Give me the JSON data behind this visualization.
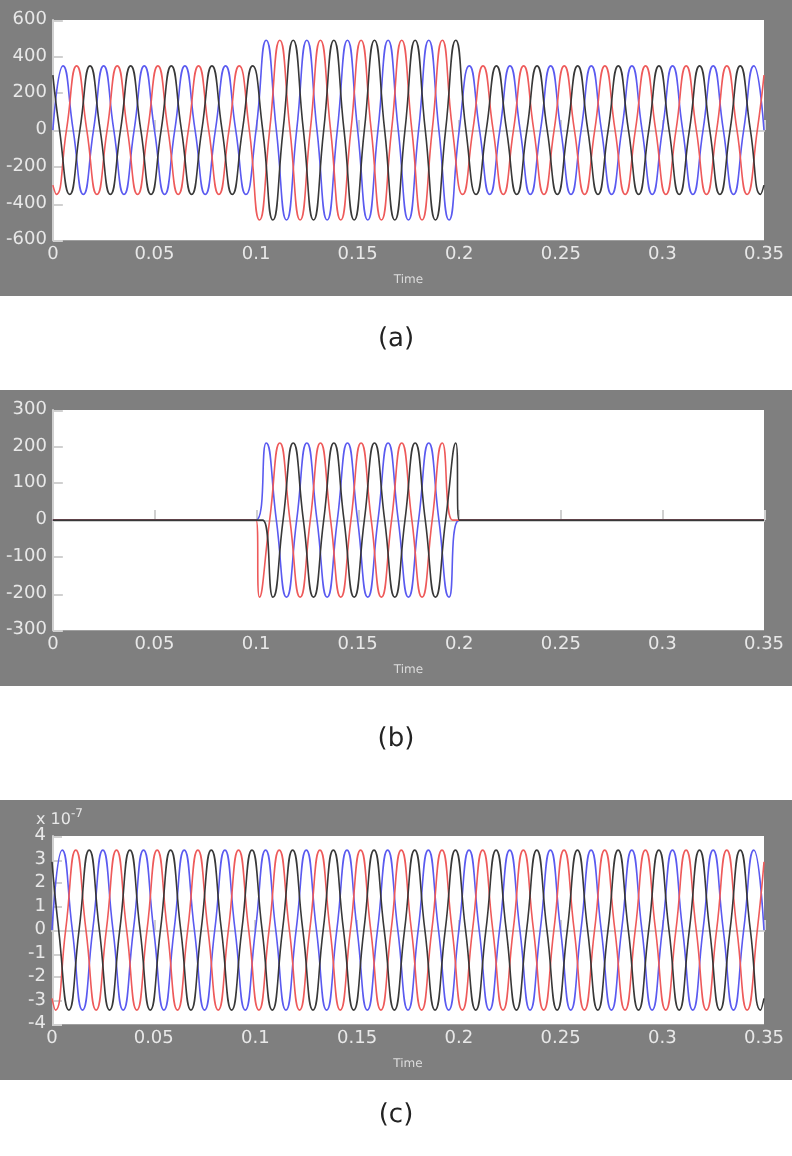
{
  "chart_data": [
    {
      "type": "line",
      "title": "(a)",
      "xlabel": "Time",
      "xlim": [
        0,
        0.35
      ],
      "xticks": [
        0,
        0.05,
        0.1,
        0.15,
        0.2,
        0.25,
        0.3,
        0.35
      ],
      "ylim": [
        -600,
        600
      ],
      "yticks": [
        -600,
        -400,
        -200,
        0,
        200,
        400,
        600
      ],
      "series": [
        {
          "color": "#5a5af0",
          "x": [
            0,
            0.005,
            0.01,
            0.015,
            0.02,
            0.025,
            0.03,
            0.035,
            0.04,
            0.045,
            0.05,
            0.055,
            0.06,
            0.065,
            0.07,
            0.075,
            0.08,
            0.085,
            0.09,
            0.095,
            0.1,
            0.105,
            0.11,
            0.115,
            0.12,
            0.125,
            0.13,
            0.135,
            0.14,
            0.145,
            0.15,
            0.155,
            0.16,
            0.165,
            0.17,
            0.175,
            0.18,
            0.185,
            0.19,
            0.195,
            0.2,
            0.205,
            0.21,
            0.215,
            0.22,
            0.225,
            0.23,
            0.235,
            0.24,
            0.245,
            0.25,
            0.255,
            0.26,
            0.265,
            0.27,
            0.275,
            0.28,
            0.285,
            0.29,
            0.295,
            0.3,
            0.305,
            0.31,
            0.315,
            0.32,
            0.325,
            0.33,
            0.335,
            0.34,
            0.345,
            0.35
          ],
          "values": [
            0,
            350,
            0,
            -350,
            0,
            350,
            0,
            -350,
            0,
            350,
            0,
            -350,
            0,
            350,
            0,
            -350,
            0,
            350,
            0,
            -350,
            0,
            490,
            0,
            -490,
            0,
            490,
            0,
            -490,
            0,
            490,
            0,
            -490,
            0,
            490,
            0,
            -490,
            0,
            490,
            0,
            -490,
            0,
            350,
            0,
            -350,
            0,
            350,
            0,
            -350,
            0,
            350,
            0,
            -350,
            0,
            350,
            0,
            -350,
            0,
            350,
            0,
            -350,
            0,
            350,
            0,
            -350,
            0,
            350,
            0,
            -350,
            0,
            350,
            0
          ]
        },
        {
          "color": "#ee5a5a",
          "x": [
            0,
            0.0017,
            0.0067,
            0.0117,
            0.0167,
            0.0217,
            0.0267,
            0.0317,
            0.0367,
            0.0417,
            0.0467,
            0.0517,
            0.0567,
            0.0617,
            0.0667,
            0.0717,
            0.0767,
            0.0817,
            0.0867,
            0.0917,
            0.0967,
            0.1017,
            0.1067,
            0.1117,
            0.1167,
            0.1217,
            0.1267,
            0.1317,
            0.1367,
            0.1417,
            0.1467,
            0.1517,
            0.1567,
            0.1617,
            0.1667,
            0.1717,
            0.1767,
            0.1817,
            0.1867,
            0.1917,
            0.1967,
            0.2017,
            0.2067,
            0.2117,
            0.2167,
            0.2217,
            0.2267,
            0.2317,
            0.2367,
            0.2417,
            0.2467,
            0.2517,
            0.2567,
            0.2617,
            0.2667,
            0.2717,
            0.2767,
            0.2817,
            0.2867,
            0.2917,
            0.2967,
            0.3017,
            0.3067,
            0.3117,
            0.3167,
            0.3217,
            0.3267,
            0.3317,
            0.3367,
            0.3417,
            0.3467,
            0.35
          ],
          "values": [
            -300,
            -350,
            0,
            350,
            0,
            -350,
            0,
            350,
            0,
            -350,
            0,
            350,
            0,
            -350,
            0,
            350,
            0,
            -350,
            0,
            350,
            0,
            -490,
            0,
            490,
            0,
            -490,
            0,
            490,
            0,
            -490,
            0,
            490,
            0,
            -490,
            0,
            490,
            0,
            -490,
            0,
            490,
            0,
            -350,
            0,
            350,
            0,
            -350,
            0,
            350,
            0,
            -350,
            0,
            350,
            0,
            -350,
            0,
            350,
            0,
            -350,
            0,
            350,
            0,
            -350,
            0,
            350,
            0,
            -350,
            0,
            350,
            0,
            -350,
            0,
            300
          ]
        },
        {
          "color": "#383838",
          "x": [
            0,
            0.0033,
            0.0083,
            0.0133,
            0.0183,
            0.0233,
            0.0283,
            0.0333,
            0.0383,
            0.0433,
            0.0483,
            0.0533,
            0.0583,
            0.0633,
            0.0683,
            0.0733,
            0.0783,
            0.0833,
            0.0883,
            0.0933,
            0.0983,
            0.1033,
            0.1083,
            0.1133,
            0.1183,
            0.1233,
            0.1283,
            0.1333,
            0.1383,
            0.1433,
            0.1483,
            0.1533,
            0.1583,
            0.1633,
            0.1683,
            0.1733,
            0.1783,
            0.1833,
            0.1883,
            0.1933,
            0.1983,
            0.2033,
            0.2083,
            0.2133,
            0.2183,
            0.2233,
            0.2283,
            0.2333,
            0.2383,
            0.2433,
            0.2483,
            0.2533,
            0.2583,
            0.2633,
            0.2683,
            0.2733,
            0.2783,
            0.2833,
            0.2883,
            0.2933,
            0.2983,
            0.3033,
            0.3083,
            0.3133,
            0.3183,
            0.3233,
            0.3283,
            0.3333,
            0.3383,
            0.3433,
            0.3483,
            0.35
          ],
          "values": [
            300,
            0,
            -350,
            0,
            350,
            0,
            -350,
            0,
            350,
            0,
            -350,
            0,
            350,
            0,
            -350,
            0,
            350,
            0,
            -350,
            0,
            350,
            0,
            -490,
            0,
            490,
            0,
            -490,
            0,
            490,
            0,
            -490,
            0,
            490,
            0,
            -490,
            0,
            490,
            0,
            -490,
            0,
            490,
            0,
            -350,
            0,
            350,
            0,
            -350,
            0,
            350,
            0,
            -350,
            0,
            350,
            0,
            -350,
            0,
            350,
            0,
            -350,
            0,
            350,
            0,
            -350,
            0,
            350,
            0,
            -350,
            0,
            350,
            0,
            -350,
            -300
          ]
        }
      ]
    },
    {
      "type": "line",
      "title": "(b)",
      "xlabel": "Time",
      "xlim": [
        0,
        0.35
      ],
      "xticks": [
        0,
        0.05,
        0.1,
        0.15,
        0.2,
        0.25,
        0.3,
        0.35
      ],
      "ylim": [
        -300,
        300
      ],
      "yticks": [
        -300,
        -200,
        -100,
        0,
        100,
        200,
        300
      ],
      "series": [
        {
          "color": "#5a5af0",
          "x": [
            0,
            0.1,
            0.105,
            0.11,
            0.115,
            0.12,
            0.125,
            0.13,
            0.135,
            0.14,
            0.145,
            0.15,
            0.155,
            0.16,
            0.165,
            0.17,
            0.175,
            0.18,
            0.185,
            0.19,
            0.195,
            0.2,
            0.35
          ],
          "values": [
            0,
            0,
            210,
            0,
            -210,
            0,
            210,
            0,
            -210,
            0,
            210,
            0,
            -210,
            0,
            210,
            0,
            -210,
            0,
            210,
            0,
            -210,
            0,
            0
          ]
        },
        {
          "color": "#ee5a5a",
          "x": [
            0,
            0.1,
            0.1017,
            0.1067,
            0.1117,
            0.1167,
            0.1217,
            0.1267,
            0.1317,
            0.1367,
            0.1417,
            0.1467,
            0.1517,
            0.1567,
            0.1617,
            0.1667,
            0.1717,
            0.1767,
            0.1817,
            0.1867,
            0.1917,
            0.1967,
            0.2,
            0.35
          ],
          "values": [
            0,
            0,
            -210,
            0,
            210,
            0,
            -210,
            0,
            210,
            0,
            -210,
            0,
            210,
            0,
            -210,
            0,
            210,
            0,
            -210,
            0,
            210,
            0,
            0,
            0
          ]
        },
        {
          "color": "#383838",
          "x": [
            0,
            0.1,
            0.1033,
            0.1083,
            0.1133,
            0.1183,
            0.1233,
            0.1283,
            0.1333,
            0.1383,
            0.1433,
            0.1483,
            0.1533,
            0.1583,
            0.1633,
            0.1683,
            0.1733,
            0.1783,
            0.1833,
            0.1883,
            0.1933,
            0.1983,
            0.2,
            0.35
          ],
          "values": [
            0,
            0,
            0,
            -210,
            0,
            210,
            0,
            -210,
            0,
            210,
            0,
            -210,
            0,
            210,
            0,
            -210,
            0,
            210,
            0,
            -210,
            0,
            210,
            0,
            0
          ]
        }
      ]
    },
    {
      "type": "line",
      "title": "(c)",
      "xlabel": "Time",
      "annotations": [
        "x 10$^{-7}$"
      ],
      "xlim": [
        0,
        0.35
      ],
      "xticks": [
        0,
        0.05,
        0.1,
        0.15,
        0.2,
        0.25,
        0.3,
        0.35
      ],
      "ylim": [
        -4,
        4
      ],
      "yticks": [
        -4,
        -3,
        -2,
        -1,
        0,
        1,
        2,
        3,
        4
      ],
      "series": [
        {
          "color": "#5a5af0",
          "x": [
            0,
            0.005,
            0.01,
            0.015,
            0.02,
            0.025,
            0.03,
            0.035,
            0.04,
            0.045,
            0.05,
            0.055,
            0.06,
            0.065,
            0.07,
            0.075,
            0.08,
            0.085,
            0.09,
            0.095,
            0.1,
            0.105,
            0.11,
            0.115,
            0.12,
            0.125,
            0.13,
            0.135,
            0.14,
            0.145,
            0.15,
            0.155,
            0.16,
            0.165,
            0.17,
            0.175,
            0.18,
            0.185,
            0.19,
            0.195,
            0.2,
            0.205,
            0.21,
            0.215,
            0.22,
            0.225,
            0.23,
            0.235,
            0.24,
            0.245,
            0.25,
            0.255,
            0.26,
            0.265,
            0.27,
            0.275,
            0.28,
            0.285,
            0.29,
            0.295,
            0.3,
            0.305,
            0.31,
            0.315,
            0.32,
            0.325,
            0.33,
            0.335,
            0.34,
            0.345,
            0.35
          ],
          "values": [
            0,
            3.4,
            0,
            -3.4,
            0,
            3.4,
            0,
            -3.4,
            0,
            3.4,
            0,
            -3.4,
            0,
            3.4,
            0,
            -3.4,
            0,
            3.4,
            0,
            -3.4,
            0,
            3.4,
            0,
            -3.4,
            0,
            3.4,
            0,
            -3.4,
            0,
            3.4,
            0,
            -3.4,
            0,
            3.4,
            0,
            -3.4,
            0,
            3.4,
            0,
            -3.4,
            0,
            3.4,
            0,
            -3.4,
            0,
            3.4,
            0,
            -3.4,
            0,
            3.4,
            0,
            -3.4,
            0,
            3.4,
            0,
            -3.4,
            0,
            3.4,
            0,
            -3.4,
            0,
            3.4,
            0,
            -3.4,
            0,
            3.4,
            0,
            -3.4,
            0,
            3.4,
            0
          ]
        },
        {
          "color": "#ee5a5a",
          "x": [
            0,
            0.0017,
            0.0067,
            0.0117,
            0.0167,
            0.0217,
            0.0267,
            0.0317,
            0.0367,
            0.0417,
            0.0467,
            0.0517,
            0.0567,
            0.0617,
            0.0667,
            0.0717,
            0.0767,
            0.0817,
            0.0867,
            0.0917,
            0.0967,
            0.1017,
            0.1067,
            0.1117,
            0.1167,
            0.1217,
            0.1267,
            0.1317,
            0.1367,
            0.1417,
            0.1467,
            0.1517,
            0.1567,
            0.1617,
            0.1667,
            0.1717,
            0.1767,
            0.1817,
            0.1867,
            0.1917,
            0.1967,
            0.2017,
            0.2067,
            0.2117,
            0.2167,
            0.2217,
            0.2267,
            0.2317,
            0.2367,
            0.2417,
            0.2467,
            0.2517,
            0.2567,
            0.2617,
            0.2667,
            0.2717,
            0.2767,
            0.2817,
            0.2867,
            0.2917,
            0.2967,
            0.3017,
            0.3067,
            0.3117,
            0.3167,
            0.3217,
            0.3267,
            0.3317,
            0.3367,
            0.3417,
            0.3467,
            0.35
          ],
          "values": [
            -2.9,
            -3.4,
            0,
            3.4,
            0,
            -3.4,
            0,
            3.4,
            0,
            -3.4,
            0,
            3.4,
            0,
            -3.4,
            0,
            3.4,
            0,
            -3.4,
            0,
            3.4,
            0,
            -3.4,
            0,
            3.4,
            0,
            -3.4,
            0,
            3.4,
            0,
            -3.4,
            0,
            3.4,
            0,
            -3.4,
            0,
            3.4,
            0,
            -3.4,
            0,
            3.4,
            0,
            -3.4,
            0,
            3.4,
            0,
            -3.4,
            0,
            3.4,
            0,
            -3.4,
            0,
            3.4,
            0,
            -3.4,
            0,
            3.4,
            0,
            -3.4,
            0,
            3.4,
            0,
            -3.4,
            0,
            3.4,
            0,
            -3.4,
            0,
            3.4,
            0,
            -3.4,
            0,
            2.9
          ]
        },
        {
          "color": "#383838",
          "x": [
            0,
            0.0033,
            0.0083,
            0.0133,
            0.0183,
            0.0233,
            0.0283,
            0.0333,
            0.0383,
            0.0433,
            0.0483,
            0.0533,
            0.0583,
            0.0633,
            0.0683,
            0.0733,
            0.0783,
            0.0833,
            0.0883,
            0.0933,
            0.0983,
            0.1033,
            0.1083,
            0.1133,
            0.1183,
            0.1233,
            0.1283,
            0.1333,
            0.1383,
            0.1433,
            0.1483,
            0.1533,
            0.1583,
            0.1633,
            0.1683,
            0.1733,
            0.1783,
            0.1833,
            0.1883,
            0.1933,
            0.1983,
            0.2033,
            0.2083,
            0.2133,
            0.2183,
            0.2233,
            0.2283,
            0.2333,
            0.2383,
            0.2433,
            0.2483,
            0.2533,
            0.2583,
            0.2633,
            0.2683,
            0.2733,
            0.2783,
            0.2833,
            0.2883,
            0.2933,
            0.2983,
            0.3033,
            0.3083,
            0.3133,
            0.3183,
            0.3233,
            0.3283,
            0.3333,
            0.3383,
            0.3433,
            0.3483,
            0.35
          ],
          "values": [
            2.9,
            0,
            -3.4,
            0,
            3.4,
            0,
            -3.4,
            0,
            3.4,
            0,
            -3.4,
            0,
            3.4,
            0,
            -3.4,
            0,
            3.4,
            0,
            -3.4,
            0,
            3.4,
            0,
            -3.4,
            0,
            3.4,
            0,
            -3.4,
            0,
            3.4,
            0,
            -3.4,
            0,
            3.4,
            0,
            -3.4,
            0,
            3.4,
            0,
            -3.4,
            0,
            3.4,
            0,
            -3.4,
            0,
            3.4,
            0,
            -3.4,
            0,
            3.4,
            0,
            -3.4,
            0,
            3.4,
            0,
            -3.4,
            0,
            3.4,
            0,
            -3.4,
            0,
            3.4,
            0,
            -3.4,
            0,
            3.4,
            0,
            -3.4,
            0,
            3.4,
            0,
            -3.4,
            -2.9
          ]
        }
      ]
    }
  ]
}
